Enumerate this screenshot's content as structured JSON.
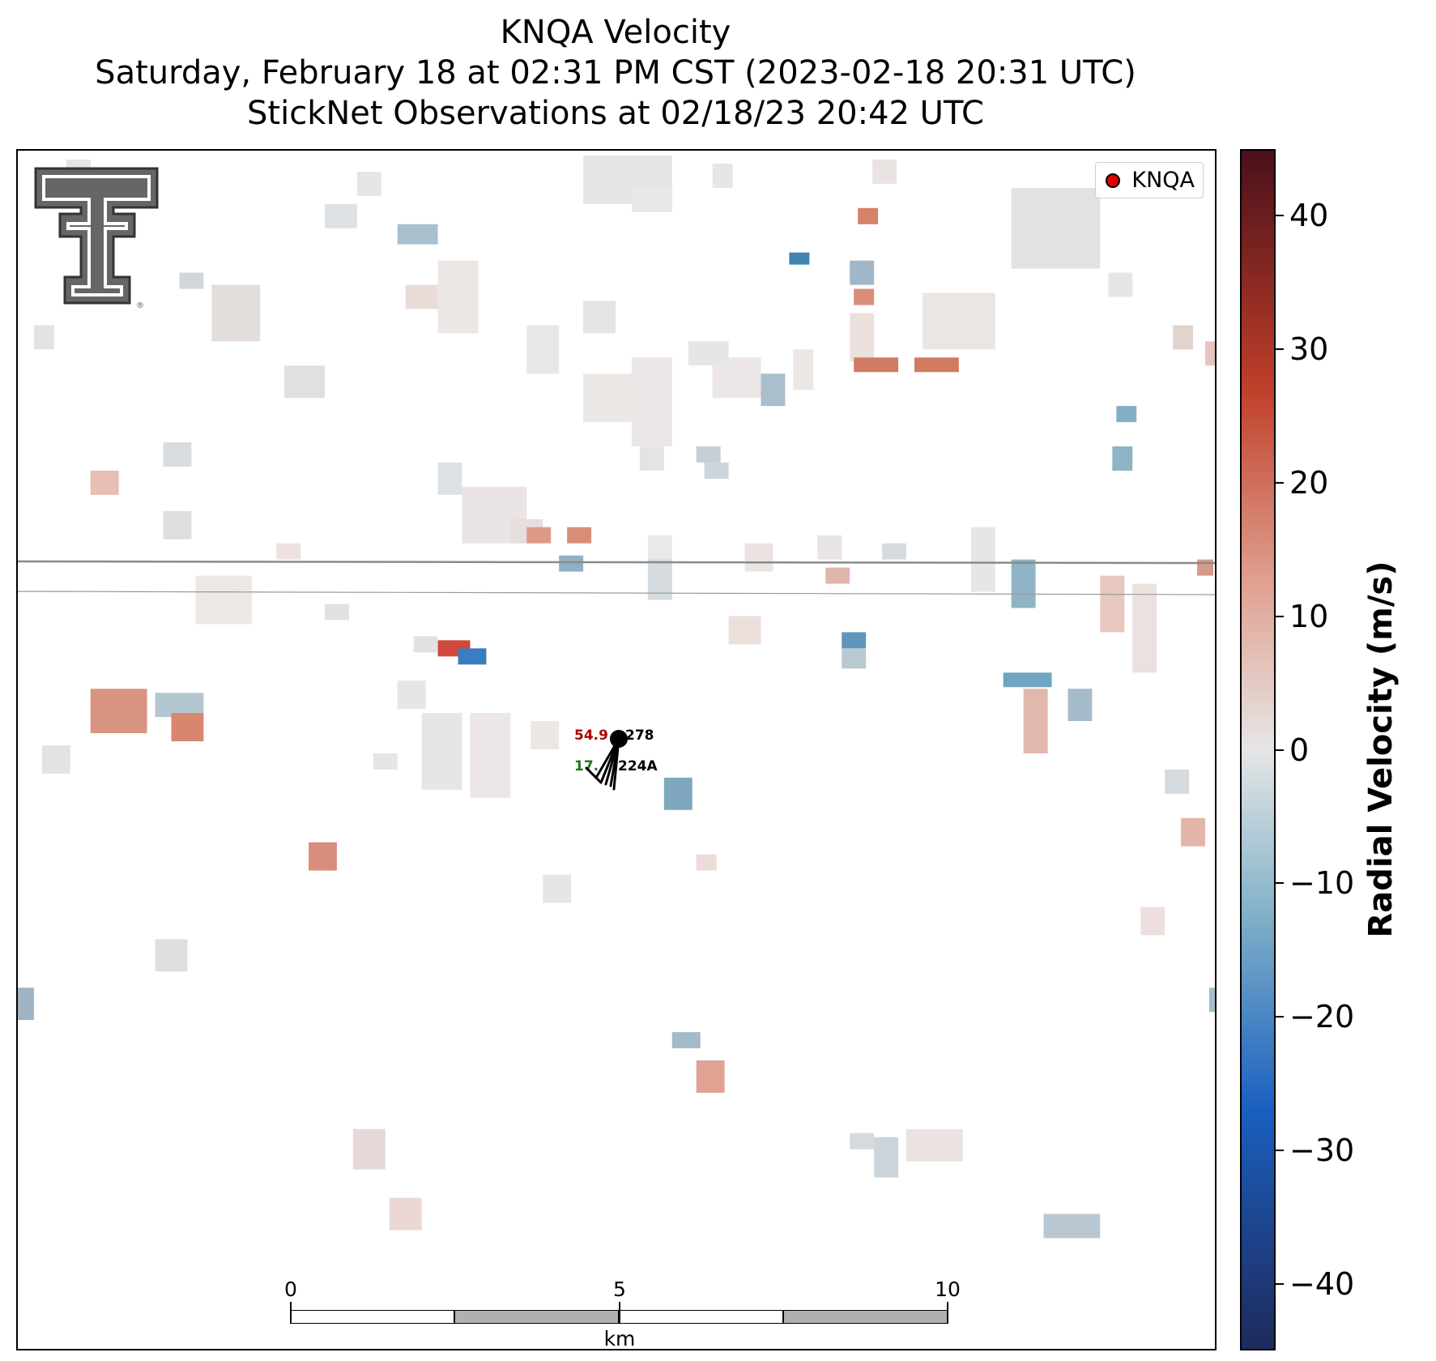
{
  "title": {
    "line1": "KNQA Velocity",
    "line2": "Saturday, February 18 at 02:31 PM CST (2023-02-18 20:31 UTC)",
    "line3": "StickNet Observations at 02/18/23 20:42 UTC"
  },
  "legend": {
    "label": "KNQA",
    "marker_color": "#e00000"
  },
  "station": {
    "id": "224A",
    "temperature": "54.9",
    "temperature_color": "#b00000",
    "dewpoint": "17.",
    "dewpoint_color": "#1a7a1a",
    "wind_dir_label": "278"
  },
  "colorbar": {
    "label": "Radial Velocity (m/s)",
    "vmin": -45,
    "vmax": 45,
    "ticks": [
      40,
      30,
      20,
      10,
      0,
      -10,
      -20,
      -30,
      -40
    ],
    "tick_labels": [
      "40",
      "30",
      "20",
      "10",
      "0",
      "−10",
      "−20",
      "−30",
      "−40"
    ],
    "colors": {
      "neg_strong": "#1f2a5a",
      "neg_mid": "#1a5fc0",
      "neg_light": "#7fb0c8",
      "zero": "#e6e6e6",
      "pos_light": "#e0a090",
      "pos_mid": "#c0402a",
      "pos_strong": "#4a0f1a"
    }
  },
  "scalebar": {
    "unit": "km",
    "labels": [
      "0",
      "5",
      "10"
    ]
  },
  "logo": {
    "name": "Texas Tech Double T"
  }
}
